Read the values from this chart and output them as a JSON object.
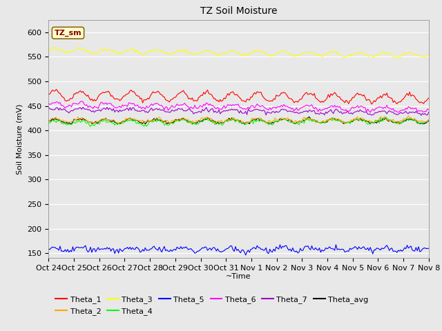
{
  "title": "TZ Soil Moisture",
  "xlabel": "~Time",
  "ylabel": "Soil Moisture (mV)",
  "legend_label": "TZ_sm",
  "xlim": [
    0,
    15
  ],
  "ylim": [
    140,
    625
  ],
  "yticks": [
    150,
    200,
    250,
    300,
    350,
    400,
    450,
    500,
    550,
    600
  ],
  "xtick_labels": [
    "Oct 24",
    "Oct 25",
    "Oct 26",
    "Oct 27",
    "Oct 28",
    "Oct 29",
    "Oct 30",
    "Oct 31",
    "Nov 1",
    "Nov 2",
    "Nov 3",
    "Nov 4",
    "Nov 5",
    "Nov 6",
    "Nov 7",
    "Nov 8"
  ],
  "n_points": 300,
  "series": {
    "Theta_1": {
      "color": "#FF0000"
    },
    "Theta_2": {
      "color": "#FFA500"
    },
    "Theta_3": {
      "color": "#FFFF00"
    },
    "Theta_4": {
      "color": "#00FF00"
    },
    "Theta_5": {
      "color": "#0000FF"
    },
    "Theta_6": {
      "color": "#FF00FF"
    },
    "Theta_7": {
      "color": "#9900CC"
    },
    "Theta_avg": {
      "color": "#000000"
    }
  },
  "bg_color": "#E8E8E8",
  "title_fontsize": 10,
  "label_fontsize": 8,
  "tick_fontsize": 8,
  "legend_order_row1": [
    "Theta_1",
    "Theta_2",
    "Theta_3",
    "Theta_4",
    "Theta_5",
    "Theta_6"
  ],
  "legend_order_row2": [
    "Theta_7",
    "Theta_avg"
  ]
}
